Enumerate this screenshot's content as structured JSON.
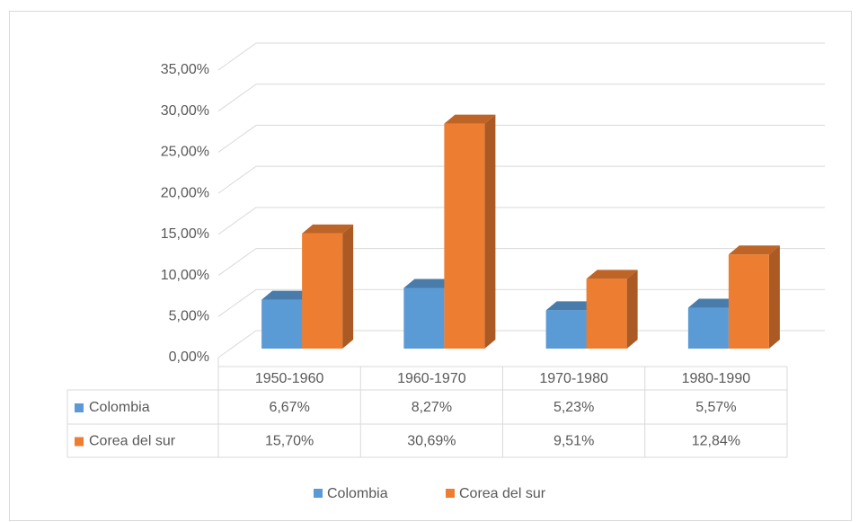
{
  "chart_data": {
    "type": "bar3d",
    "categories": [
      "1950-1960",
      "1960-1970",
      "1970-1980",
      "1980-1990"
    ],
    "series": [
      {
        "name": "Colombia",
        "color": "#5b9bd5",
        "values": [
          6.67,
          8.27,
          5.23,
          5.57
        ],
        "value_labels": [
          "6,67%",
          "8,27%",
          "5,23%",
          "5,57%"
        ]
      },
      {
        "name": "Corea del sur",
        "color": "#ed7d31",
        "values": [
          15.7,
          30.69,
          9.51,
          12.84
        ],
        "value_labels": [
          "15,70%",
          "30,69%",
          "9,51%",
          "12,84%"
        ]
      }
    ],
    "ylim": [
      0,
      35
    ],
    "yticks": [
      {
        "value": 0,
        "label": "0,00%"
      },
      {
        "value": 5,
        "label": "5,00%"
      },
      {
        "value": 10,
        "label": "10,00%"
      },
      {
        "value": 15,
        "label": "15,00%"
      },
      {
        "value": 20,
        "label": "20,00%"
      },
      {
        "value": 25,
        "label": "25,00%"
      },
      {
        "value": 30,
        "label": "30,00%"
      },
      {
        "value": 35,
        "label": "35,00%"
      }
    ],
    "grid": true,
    "legend": "bottom",
    "data_table": true
  }
}
